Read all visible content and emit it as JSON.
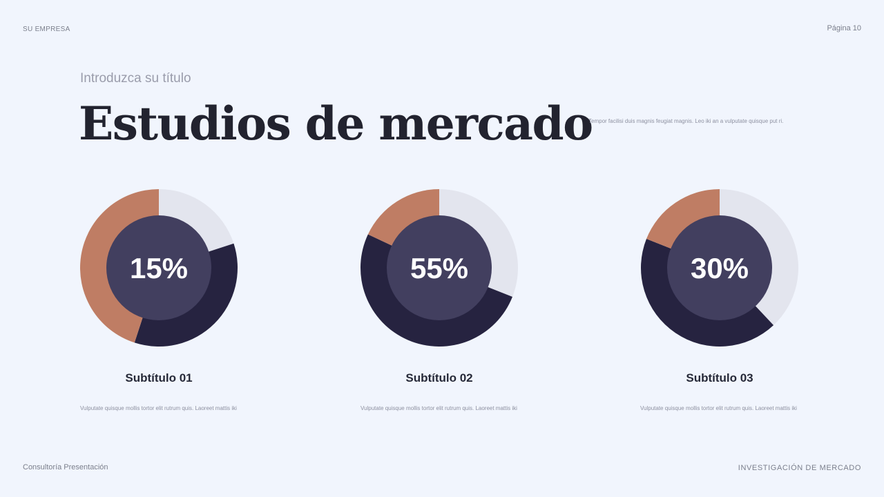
{
  "header": {
    "company": "SU EMPRESA",
    "page": "Página 10"
  },
  "slide": {
    "subtitle": "Introduzca su título",
    "title": "Estudios de mercado",
    "description": "Tempor facilisi duis magnis feugiat magnis. Leo iki an a vulputate quisque put ri."
  },
  "colors": {
    "light": "#e3e5ee",
    "dark": "#262340",
    "accent": "#bf7d64",
    "center": "#423f5f",
    "label": "#ffffff"
  },
  "chart_data": [
    {
      "type": "pie",
      "label": "15%",
      "slices": [
        {
          "value": 0.2,
          "color": "#e3e5ee"
        },
        {
          "value": 0.35,
          "color": "#262340"
        },
        {
          "value": 0.45,
          "color": "#bf7d64"
        }
      ]
    },
    {
      "type": "pie",
      "label": "55%",
      "slices": [
        {
          "value": 0.31,
          "color": "#e3e5ee"
        },
        {
          "value": 0.51,
          "color": "#262340"
        },
        {
          "value": 0.18,
          "color": "#bf7d64"
        }
      ]
    },
    {
      "type": "pie",
      "label": "30%",
      "slices": [
        {
          "value": 0.38,
          "color": "#e3e5ee"
        },
        {
          "value": 0.43,
          "color": "#262340"
        },
        {
          "value": 0.19,
          "color": "#bf7d64"
        }
      ]
    }
  ],
  "cards": [
    {
      "subtitle": "Subtítulo 01",
      "text": "Vulputate quisque mollis tortor elit rutrum quis. Laoreet mattis iki"
    },
    {
      "subtitle": "Subtítulo 02",
      "text": "Vulputate quisque mollis tortor elit rutrum quis. Laoreet mattis iki"
    },
    {
      "subtitle": "Subtítulo 03",
      "text": "Vulputate quisque mollis tortor elit rutrum quis. Laoreet mattis iki"
    }
  ],
  "footer": {
    "left": "Consultoría Presentación",
    "right": "INVESTIGACIÓN DE MERCADO"
  }
}
